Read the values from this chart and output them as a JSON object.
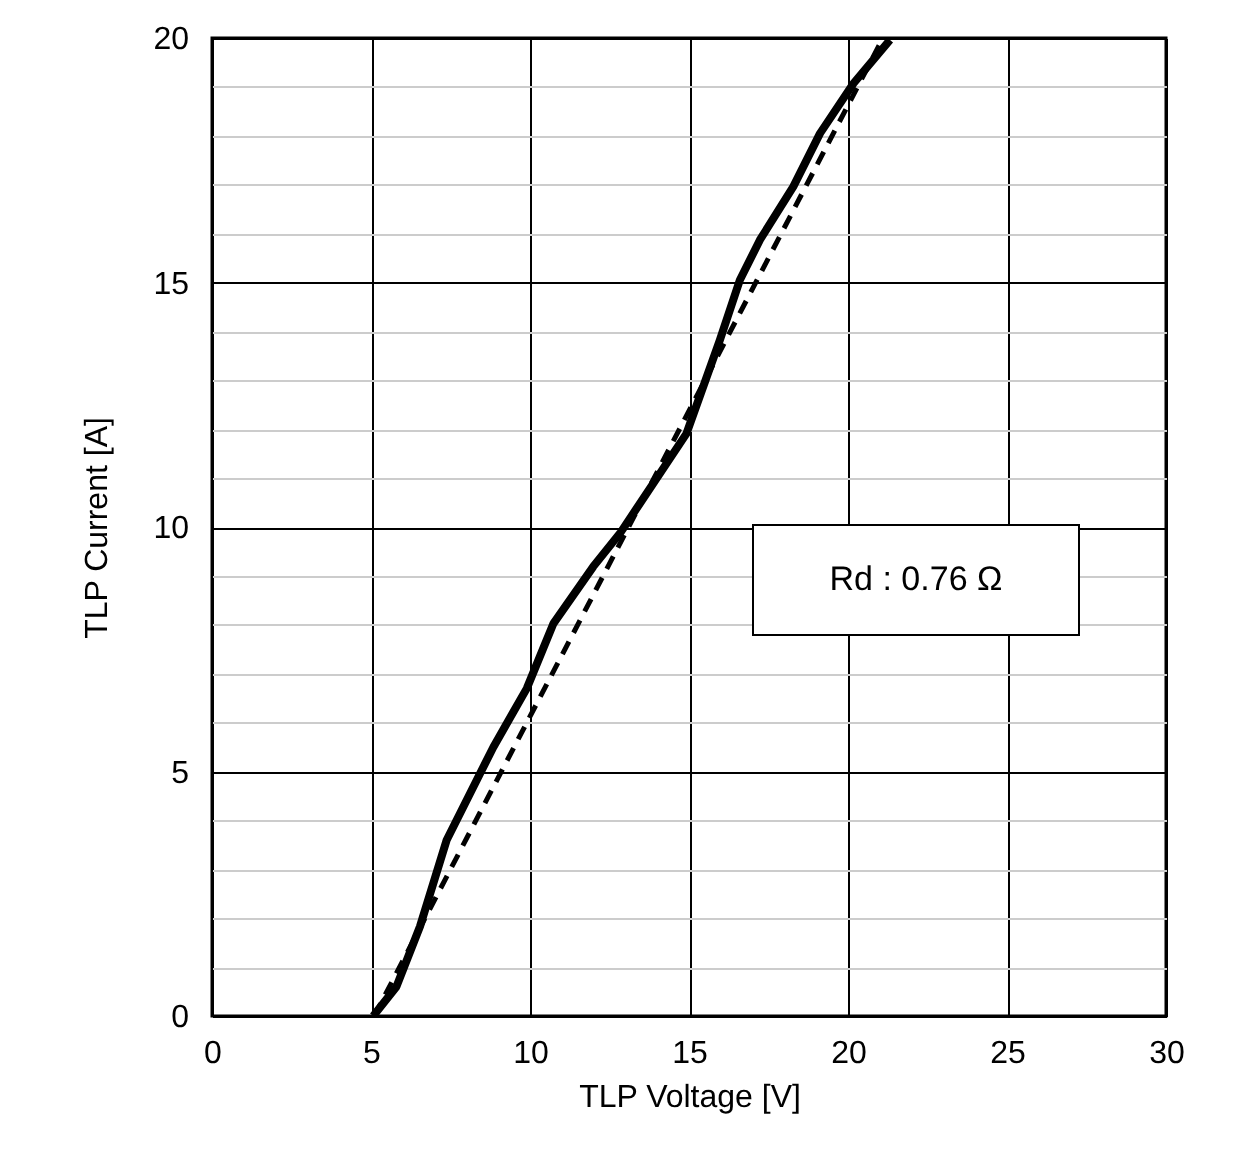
{
  "chart_data": {
    "type": "line",
    "xlabel": "TLP Voltage [V]",
    "ylabel": "TLP Current [A]",
    "annotations": [
      "Rd : 0.76 Ω"
    ],
    "xlim": [
      0,
      30
    ],
    "xticks": [
      0,
      5,
      10,
      15,
      20,
      25,
      30
    ],
    "ylim": [
      0,
      20
    ],
    "yticks": [
      0,
      {
        "value": 1,
        "label": null
      },
      {
        "value": 2,
        "label": null
      },
      {
        "value": 3,
        "label": null
      },
      {
        "value": 4,
        "label": null
      },
      5,
      {
        "value": 6,
        "label": null
      },
      {
        "value": 7,
        "label": null
      },
      {
        "value": 8,
        "label": null
      },
      {
        "value": 9,
        "label": null
      },
      10,
      {
        "value": 11,
        "label": null
      },
      {
        "value": 12,
        "label": null
      },
      {
        "value": 13,
        "label": null
      },
      {
        "value": 14,
        "label": null
      },
      15,
      {
        "value": 16,
        "label": null
      },
      {
        "value": 17,
        "label": null
      },
      {
        "value": 18,
        "label": null
      },
      {
        "value": 19,
        "label": null
      },
      20
    ],
    "grid": true,
    "series": [
      {
        "color": "#000000",
        "line_style": "solid",
        "x": [
          5.07,
          5.8,
          6.54,
          7.38,
          8.43,
          8.85,
          9.9,
          10.74,
          11.99,
          12.83,
          14.92,
          15.97,
          16.6,
          17.23,
          18.28,
          19.12,
          20.17,
          21.32
        ],
        "values": [
          0,
          0.6,
          1.83,
          3.6,
          4.96,
          5.5,
          6.7,
          8.03,
          9.19,
          9.87,
          11.91,
          13.82,
          15.05,
          15.87,
          16.96,
          18.05,
          19.07,
          19.96
        ]
      },
      {
        "color": "#000000",
        "line_style": "dashed",
        "x": [
          5.1,
          21.1
        ],
        "values": [
          0,
          20
        ]
      }
    ]
  }
}
